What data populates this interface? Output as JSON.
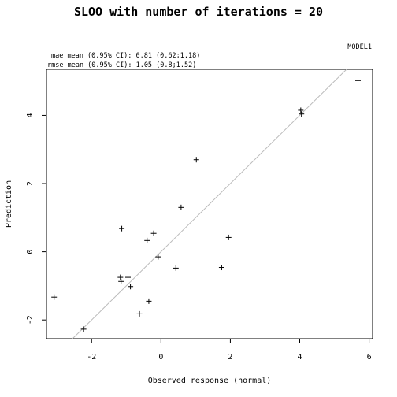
{
  "chart_data": {
    "type": "scatter",
    "title": "SLOO with number of iterations =  20",
    "model_label": "MODEL1",
    "annotations": [
      "mae mean (0.95% CI): 0.81 (0.62;1.18)",
      "rmse mean (0.95% CI): 1.05 (0.8;1.52)"
    ],
    "xlabel": "Observed response (normal)",
    "ylabel": "Prediction",
    "xlim": [
      -3.3,
      6.1
    ],
    "ylim": [
      -2.55,
      5.35
    ],
    "xticks": [
      -2,
      0,
      2,
      4,
      6
    ],
    "yticks": [
      -2,
      0,
      2,
      4
    ],
    "grid": false,
    "reference_line": "y = x",
    "reference_line_color": "#bbbbbb",
    "points": [
      {
        "x": -3.08,
        "y": -1.33
      },
      {
        "x": -2.23,
        "y": -2.27
      },
      {
        "x": -1.13,
        "y": 0.68
      },
      {
        "x": -1.17,
        "y": -0.75
      },
      {
        "x": -1.15,
        "y": -0.87
      },
      {
        "x": -0.95,
        "y": -0.75
      },
      {
        "x": -0.88,
        "y": -1.02
      },
      {
        "x": -0.62,
        "y": -1.82
      },
      {
        "x": -0.4,
        "y": 0.33
      },
      {
        "x": -0.35,
        "y": -1.45
      },
      {
        "x": -0.21,
        "y": 0.54
      },
      {
        "x": -0.08,
        "y": -0.15
      },
      {
        "x": 0.43,
        "y": -0.48
      },
      {
        "x": 0.58,
        "y": 1.3
      },
      {
        "x": 1.02,
        "y": 2.7
      },
      {
        "x": 1.75,
        "y": -0.46
      },
      {
        "x": 1.95,
        "y": 0.42
      },
      {
        "x": 4.03,
        "y": 4.15
      },
      {
        "x": 4.05,
        "y": 4.04
      },
      {
        "x": 5.68,
        "y": 5.02
      }
    ]
  }
}
